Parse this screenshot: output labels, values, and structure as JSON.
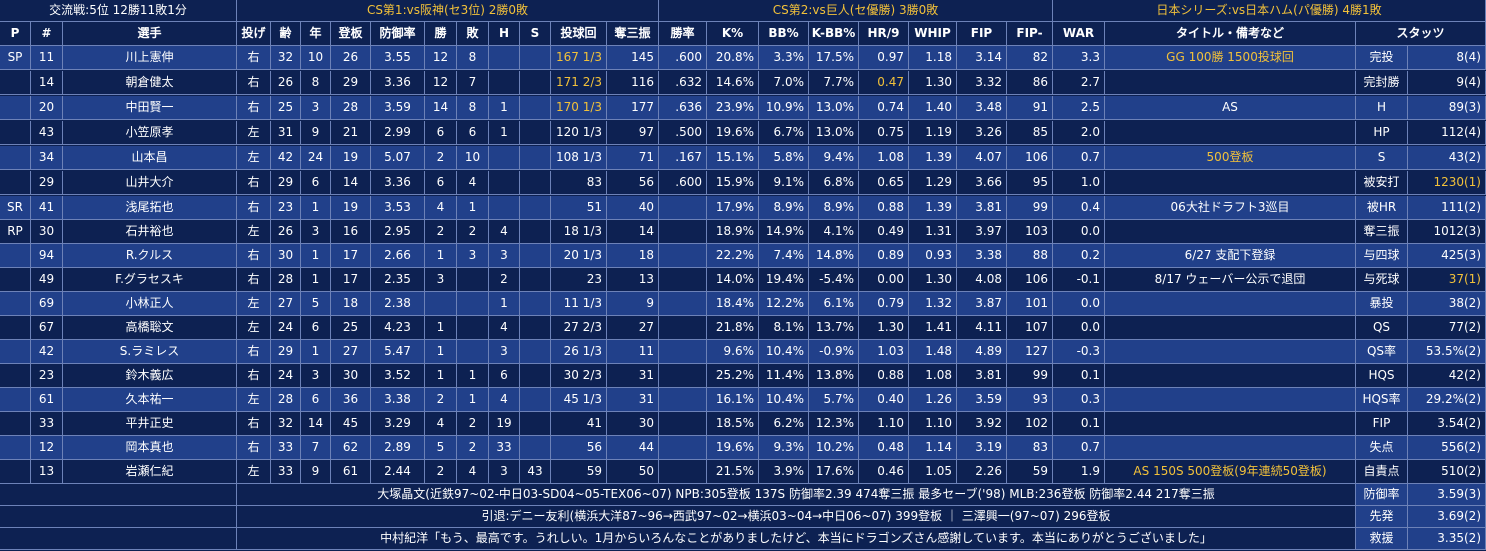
{
  "top": {
    "record": "交流戦:5位 12勝11敗1分",
    "cs1": "CS第1:vs阪神(セ3位) 2勝0敗",
    "cs2": "CS第2:vs巨人(セ優勝) 3勝0敗",
    "japan_series": "日本シリーズ:vs日本ハム(パ優勝) 4勝1敗"
  },
  "headers": [
    "P",
    "#",
    "選手",
    "投げ",
    "齢",
    "年",
    "登板",
    "防御率",
    "勝",
    "敗",
    "H",
    "S",
    "投球回",
    "奪三振",
    "勝率",
    "K%",
    "BB%",
    "K-BB%",
    "HR/9",
    "WHIP",
    "FIP",
    "FIP-",
    "WAR",
    "タイトル・備考など",
    "スタッツ"
  ],
  "players": [
    {
      "role": "SP",
      "no": "11",
      "name": "川上憲伸",
      "throw": "右",
      "age": "32",
      "years": "10",
      "g": "26",
      "era": "3.55",
      "w": "12",
      "l": "8",
      "h": "",
      "s": "",
      "ip": "167 1/3",
      "so": "145",
      "wpct": ".600",
      "k": "20.8%",
      "bb": "3.3%",
      "kbb": "17.5%",
      "hr9": "0.97",
      "whip": "1.18",
      "fip": "3.14",
      "fipm": "82",
      "war": "3.3",
      "note": "GG 100勝 1500投球回",
      "stat_label": "完投",
      "stat_value": "8(4)"
    },
    {
      "role": "",
      "no": "14",
      "name": "朝倉健太",
      "throw": "右",
      "age": "26",
      "years": "8",
      "g": "29",
      "era": "3.36",
      "w": "12",
      "l": "7",
      "h": "",
      "s": "",
      "ip": "171 2/3",
      "so": "116",
      "wpct": ".632",
      "k": "14.6%",
      "bb": "7.0%",
      "kbb": "7.7%",
      "hr9": "0.47",
      "whip": "1.30",
      "fip": "3.32",
      "fipm": "86",
      "war": "2.7",
      "note": "",
      "stat_label": "完封勝",
      "stat_value": "9(4)"
    },
    {
      "role": "",
      "no": "20",
      "name": "中田賢一",
      "throw": "右",
      "age": "25",
      "years": "3",
      "g": "28",
      "era": "3.59",
      "w": "14",
      "l": "8",
      "h": "1",
      "s": "",
      "ip": "170 1/3",
      "so": "177",
      "wpct": ".636",
      "k": "23.9%",
      "bb": "10.9%",
      "kbb": "13.0%",
      "hr9": "0.74",
      "whip": "1.40",
      "fip": "3.48",
      "fipm": "91",
      "war": "2.5",
      "note": "AS",
      "stat_label": "H",
      "stat_value": "89(3)"
    },
    {
      "role": "",
      "no": "43",
      "name": "小笠原孝",
      "throw": "左",
      "age": "31",
      "years": "9",
      "g": "21",
      "era": "2.99",
      "w": "6",
      "l": "6",
      "h": "1",
      "s": "",
      "ip": "120 1/3",
      "so": "97",
      "wpct": ".500",
      "k": "19.6%",
      "bb": "6.7%",
      "kbb": "13.0%",
      "hr9": "0.75",
      "whip": "1.19",
      "fip": "3.26",
      "fipm": "85",
      "war": "2.0",
      "note": "",
      "stat_label": "HP",
      "stat_value": "112(4)"
    },
    {
      "role": "",
      "no": "34",
      "name": "山本昌",
      "throw": "左",
      "age": "42",
      "years": "24",
      "g": "19",
      "era": "5.07",
      "w": "2",
      "l": "10",
      "h": "",
      "s": "",
      "ip": "108 1/3",
      "so": "71",
      "wpct": ".167",
      "k": "15.1%",
      "bb": "5.8%",
      "kbb": "9.4%",
      "hr9": "1.08",
      "whip": "1.39",
      "fip": "4.07",
      "fipm": "106",
      "war": "0.7",
      "note": "500登板",
      "stat_label": "S",
      "stat_value": "43(2)"
    },
    {
      "role": "",
      "no": "29",
      "name": "山井大介",
      "throw": "右",
      "age": "29",
      "years": "6",
      "g": "14",
      "era": "3.36",
      "w": "6",
      "l": "4",
      "h": "",
      "s": "",
      "ip": "83",
      "so": "56",
      "wpct": ".600",
      "k": "15.9%",
      "bb": "9.1%",
      "kbb": "6.8%",
      "hr9": "0.65",
      "whip": "1.29",
      "fip": "3.66",
      "fipm": "95",
      "war": "1.0",
      "note": "",
      "stat_label": "被安打",
      "stat_value": "1230(1)"
    },
    {
      "role": "SR",
      "no": "41",
      "name": "浅尾拓也",
      "throw": "右",
      "age": "23",
      "years": "1",
      "g": "19",
      "era": "3.53",
      "w": "4",
      "l": "1",
      "h": "",
      "s": "",
      "ip": "51",
      "so": "40",
      "wpct": "",
      "k": "17.9%",
      "bb": "8.9%",
      "kbb": "8.9%",
      "hr9": "0.88",
      "whip": "1.39",
      "fip": "3.81",
      "fipm": "99",
      "war": "0.4",
      "note": "06大社ドラフト3巡目",
      "stat_label": "被HR",
      "stat_value": "111(2)"
    },
    {
      "role": "RP",
      "no": "30",
      "name": "石井裕也",
      "throw": "左",
      "age": "26",
      "years": "3",
      "g": "16",
      "era": "2.95",
      "w": "2",
      "l": "2",
      "h": "4",
      "s": "",
      "ip": "18 1/3",
      "so": "14",
      "wpct": "",
      "k": "18.9%",
      "bb": "14.9%",
      "kbb": "4.1%",
      "hr9": "0.49",
      "whip": "1.31",
      "fip": "3.97",
      "fipm": "103",
      "war": "0.0",
      "note": "",
      "stat_label": "奪三振",
      "stat_value": "1012(3)"
    },
    {
      "role": "",
      "no": "94",
      "name": "R.クルス",
      "throw": "右",
      "age": "30",
      "years": "1",
      "g": "17",
      "era": "2.66",
      "w": "1",
      "l": "3",
      "h": "3",
      "s": "",
      "ip": "20 1/3",
      "so": "18",
      "wpct": "",
      "k": "22.2%",
      "bb": "7.4%",
      "kbb": "14.8%",
      "hr9": "0.89",
      "whip": "0.93",
      "fip": "3.38",
      "fipm": "88",
      "war": "0.2",
      "note": "6/27 支配下登録",
      "stat_label": "与四球",
      "stat_value": "425(3)"
    },
    {
      "role": "",
      "no": "49",
      "name": "F.グラセスキ",
      "throw": "右",
      "age": "28",
      "years": "1",
      "g": "17",
      "era": "2.35",
      "w": "3",
      "l": "",
      "h": "2",
      "s": "",
      "ip": "23",
      "so": "13",
      "wpct": "",
      "k": "14.0%",
      "bb": "19.4%",
      "kbb": "-5.4%",
      "hr9": "0.00",
      "whip": "1.30",
      "fip": "4.08",
      "fipm": "106",
      "war": "-0.1",
      "note": "8/17 ウェーバー公示で退団",
      "stat_label": "与死球",
      "stat_value": "37(1)"
    },
    {
      "role": "",
      "no": "69",
      "name": "小林正人",
      "throw": "左",
      "age": "27",
      "years": "5",
      "g": "18",
      "era": "2.38",
      "w": "",
      "l": "",
      "h": "1",
      "s": "",
      "ip": "11 1/3",
      "so": "9",
      "wpct": "",
      "k": "18.4%",
      "bb": "12.2%",
      "kbb": "6.1%",
      "hr9": "0.79",
      "whip": "1.32",
      "fip": "3.87",
      "fipm": "101",
      "war": "0.0",
      "note": "",
      "stat_label": "暴投",
      "stat_value": "38(2)"
    },
    {
      "role": "",
      "no": "67",
      "name": "高橋聡文",
      "throw": "左",
      "age": "24",
      "years": "6",
      "g": "25",
      "era": "4.23",
      "w": "1",
      "l": "",
      "h": "4",
      "s": "",
      "ip": "27 2/3",
      "so": "27",
      "wpct": "",
      "k": "21.8%",
      "bb": "8.1%",
      "kbb": "13.7%",
      "hr9": "1.30",
      "whip": "1.41",
      "fip": "4.11",
      "fipm": "107",
      "war": "0.0",
      "note": "",
      "stat_label": "QS",
      "stat_value": "77(2)"
    },
    {
      "role": "",
      "no": "42",
      "name": "S.ラミレス",
      "throw": "右",
      "age": "29",
      "years": "1",
      "g": "27",
      "era": "5.47",
      "w": "1",
      "l": "",
      "h": "3",
      "s": "",
      "ip": "26 1/3",
      "so": "11",
      "wpct": "",
      "k": "9.6%",
      "bb": "10.4%",
      "kbb": "-0.9%",
      "hr9": "1.03",
      "whip": "1.48",
      "fip": "4.89",
      "fipm": "127",
      "war": "-0.3",
      "note": "",
      "stat_label": "QS率",
      "stat_value": "53.5%(2)"
    },
    {
      "role": "",
      "no": "23",
      "name": "鈴木義広",
      "throw": "右",
      "age": "24",
      "years": "3",
      "g": "30",
      "era": "3.52",
      "w": "1",
      "l": "1",
      "h": "6",
      "s": "",
      "ip": "30 2/3",
      "so": "31",
      "wpct": "",
      "k": "25.2%",
      "bb": "11.4%",
      "kbb": "13.8%",
      "hr9": "0.88",
      "whip": "1.08",
      "fip": "3.81",
      "fipm": "99",
      "war": "0.1",
      "note": "",
      "stat_label": "HQS",
      "stat_value": "42(2)"
    },
    {
      "role": "",
      "no": "61",
      "name": "久本祐一",
      "throw": "左",
      "age": "28",
      "years": "6",
      "g": "36",
      "era": "3.38",
      "w": "2",
      "l": "1",
      "h": "4",
      "s": "",
      "ip": "45 1/3",
      "so": "31",
      "wpct": "",
      "k": "16.1%",
      "bb": "10.4%",
      "kbb": "5.7%",
      "hr9": "0.40",
      "whip": "1.26",
      "fip": "3.59",
      "fipm": "93",
      "war": "0.3",
      "note": "",
      "stat_label": "HQS率",
      "stat_value": "29.2%(2)"
    },
    {
      "role": "",
      "no": "33",
      "name": "平井正史",
      "throw": "右",
      "age": "32",
      "years": "14",
      "g": "45",
      "era": "3.29",
      "w": "4",
      "l": "2",
      "h": "19",
      "s": "",
      "ip": "41",
      "so": "30",
      "wpct": "",
      "k": "18.5%",
      "bb": "6.2%",
      "kbb": "12.3%",
      "hr9": "1.10",
      "whip": "1.10",
      "fip": "3.92",
      "fipm": "102",
      "war": "0.1",
      "note": "",
      "stat_label": "FIP",
      "stat_value": "3.54(2)"
    },
    {
      "role": "",
      "no": "12",
      "name": "岡本真也",
      "throw": "右",
      "age": "33",
      "years": "7",
      "g": "62",
      "era": "2.89",
      "w": "5",
      "l": "2",
      "h": "33",
      "s": "",
      "ip": "56",
      "so": "44",
      "wpct": "",
      "k": "19.6%",
      "bb": "9.3%",
      "kbb": "10.2%",
      "hr9": "0.48",
      "whip": "1.14",
      "fip": "3.19",
      "fipm": "83",
      "war": "0.7",
      "note": "",
      "stat_label": "失点",
      "stat_value": "556(2)"
    },
    {
      "role": "",
      "no": "13",
      "name": "岩瀬仁紀",
      "throw": "左",
      "age": "33",
      "years": "9",
      "g": "61",
      "era": "2.44",
      "w": "2",
      "l": "4",
      "h": "3",
      "s": "43",
      "ip": "59",
      "so": "50",
      "wpct": "",
      "k": "21.5%",
      "bb": "3.9%",
      "kbb": "17.6%",
      "hr9": "0.46",
      "whip": "1.05",
      "fip": "2.26",
      "fipm": "59",
      "war": "1.9",
      "note": "AS 150S 500登板(9年連続50登板)",
      "stat_label": "自責点",
      "stat_value": "510(2)"
    }
  ],
  "footer": [
    {
      "text": "大塚晶文(近鉄97~02-中日03-SD04~05-TEX06~07) NPB:305登板 137S 防御率2.39 474奪三振 最多セーブ('98) MLB:236登板 防御率2.44 217奪三振",
      "stat_label": "防御率",
      "stat_value": "3.59(3)"
    },
    {
      "text": "引退:デニー友利(横浜大洋87~96→西武97~02→横浜03~04→中日06~07) 399登板 ｜ 三澤興一(97~07) 296登板",
      "stat_label": "先発",
      "stat_value": "3.69(2)"
    },
    {
      "text": "中村紀洋「もう、最高です。うれしい。1月からいろんなことがありましたけど、本当にドラゴンズさん感謝しています。本当にありがとうございました」",
      "stat_label": "救援",
      "stat_value": "3.35(2)"
    }
  ],
  "colors": {
    "bg_dark": "#0d2152",
    "bg_light": "#21408a",
    "gold": "#f2c13a",
    "text": "#ffffff"
  }
}
